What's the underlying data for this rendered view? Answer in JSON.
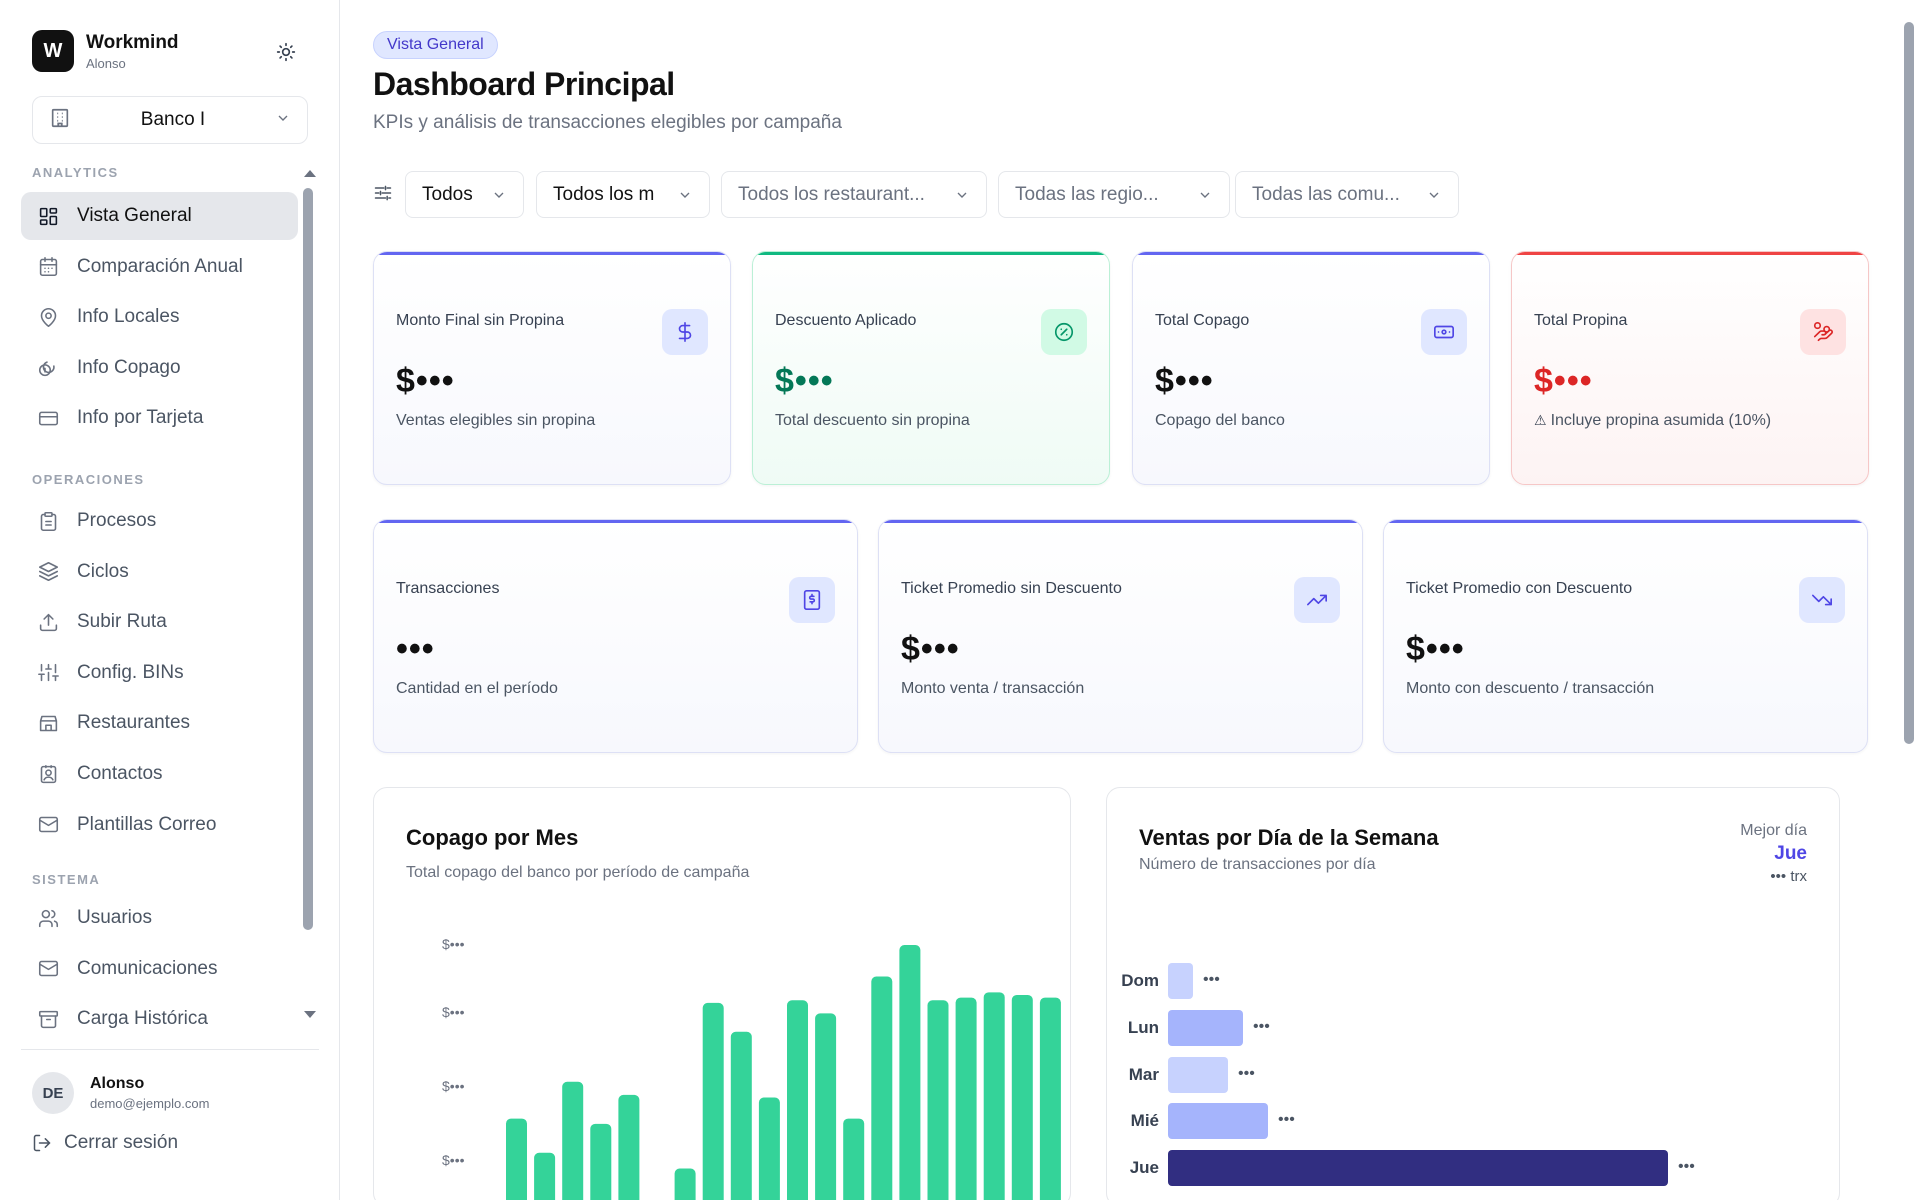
{
  "sidebar": {
    "brand": {
      "logo": "W",
      "name": "Workmind",
      "user": "Alonso"
    },
    "theme_icon": "sun-icon",
    "org_select": {
      "value": "Banco I",
      "icon": "building-icon"
    },
    "sections": [
      {
        "title": "ANALYTICS",
        "items": [
          {
            "label": "Vista General",
            "icon": "grid-icon",
            "active": true
          },
          {
            "label": "Comparación Anual",
            "icon": "calendar-icon"
          },
          {
            "label": "Info Locales",
            "icon": "map-pin-icon"
          },
          {
            "label": "Info Copago",
            "icon": "coins-icon"
          },
          {
            "label": "Info por Tarjeta",
            "icon": "credit-card-icon"
          }
        ]
      },
      {
        "title": "OPERACIONES",
        "items": [
          {
            "label": "Procesos",
            "icon": "clipboard-icon"
          },
          {
            "label": "Ciclos",
            "icon": "layers-icon"
          },
          {
            "label": "Subir Ruta",
            "icon": "upload-icon"
          },
          {
            "label": "Config. BINs",
            "icon": "sliders-icon"
          },
          {
            "label": "Restaurantes",
            "icon": "store-icon"
          },
          {
            "label": "Contactos",
            "icon": "contact-icon"
          },
          {
            "label": "Plantillas Correo",
            "icon": "mail-icon"
          }
        ]
      },
      {
        "title": "SISTEMA",
        "items": [
          {
            "label": "Usuarios",
            "icon": "users-icon"
          },
          {
            "label": "Comunicaciones",
            "icon": "mail-icon"
          },
          {
            "label": "Carga Histórica",
            "icon": "archive-icon"
          }
        ]
      }
    ],
    "profile": {
      "initials": "DE",
      "name": "Alonso",
      "email": "demo@ejemplo.com"
    },
    "logout_label": "Cerrar sesión"
  },
  "header": {
    "badge": "Vista General",
    "title": "Dashboard Principal",
    "subtitle": "KPIs y análisis de transacciones elegibles por campaña"
  },
  "filters": [
    {
      "value": "Todos",
      "style": "dark"
    },
    {
      "value": "Todos los m",
      "style": "dark"
    },
    {
      "value": "Todos los restaurant...",
      "style": "muted"
    },
    {
      "value": "Todas las regio...",
      "style": "muted"
    },
    {
      "value": "Todas las comu...",
      "style": "muted"
    }
  ],
  "kpis_row1": [
    {
      "title": "Monto Final sin Propina",
      "value": "$•••",
      "sub": "Ventas elegibles sin propina",
      "icon": "dollar-icon",
      "accent": "#6366f1",
      "value_color": "#111111"
    },
    {
      "title": "Descuento Aplicado",
      "value": "$•••",
      "sub": "Total descuento sin propina",
      "icon": "badge-percent-icon",
      "accent": "#10b981",
      "value_color": "#047857"
    },
    {
      "title": "Total Copago",
      "value": "$•••",
      "sub": "Copago del banco",
      "icon": "banknote-icon",
      "accent": "#6366f1",
      "value_color": "#111111"
    },
    {
      "title": "Total Propina",
      "value": "$•••",
      "sub": "Incluye propina asumida (10%)",
      "icon": "hand-coins-icon",
      "accent": "#ef4444",
      "value_color": "#dc2626",
      "sub_icon": "warning-icon"
    }
  ],
  "kpis_row2": [
    {
      "title": "Transacciones",
      "value": "•••",
      "sub": "Cantidad en el período",
      "icon": "receipt-icon",
      "accent": "#6366f1"
    },
    {
      "title": "Ticket Promedio sin Descuento",
      "value": "$•••",
      "sub": "Monto venta / transacción",
      "icon": "trending-up-icon",
      "accent": "#6366f1"
    },
    {
      "title": "Ticket Promedio con Descuento",
      "value": "$•••",
      "sub": "Monto con descuento / transacción",
      "icon": "trending-down-icon",
      "accent": "#6366f1"
    }
  ],
  "copago_card": {
    "title": "Copago por Mes",
    "subtitle": "Total copago del banco por período de campaña"
  },
  "ventas_card": {
    "title": "Ventas por Día de la Semana",
    "subtitle": "Número de transacciones por día",
    "best_label": "Mejor día",
    "best_day": "Jue",
    "best_value": "••• trx"
  },
  "chart_data": [
    {
      "type": "bar",
      "title": "Copago por Mes",
      "y_tick_labels": [
        "$•••",
        "$•••",
        "$•••",
        "$•••"
      ],
      "values": [
        0.34,
        0.21,
        0.48,
        0.32,
        0.43,
        0,
        0.15,
        0.78,
        0.67,
        0.42,
        0.79,
        0.74,
        0.34,
        0.88,
        1.0,
        0.79,
        0.8,
        0.82,
        0.81,
        0.8
      ],
      "value_unit": "relative to tallest bar (values hidden)",
      "color": "#34d399"
    },
    {
      "type": "bar",
      "orientation": "horizontal",
      "title": "Ventas por Día de la Semana",
      "categories": [
        "Dom",
        "Lun",
        "Mar",
        "Mié",
        "Jue"
      ],
      "values": [
        0.05,
        0.15,
        0.12,
        0.2,
        1.0
      ],
      "value_unit": "relative to tallest bar (values hidden)",
      "value_labels": [
        "•••",
        "•••",
        "•••",
        "•••",
        "•••"
      ],
      "colors": [
        "#c7d2fe",
        "#a5b4fc",
        "#c7d2fe",
        "#a5b4fc",
        "#312e81"
      ]
    }
  ]
}
